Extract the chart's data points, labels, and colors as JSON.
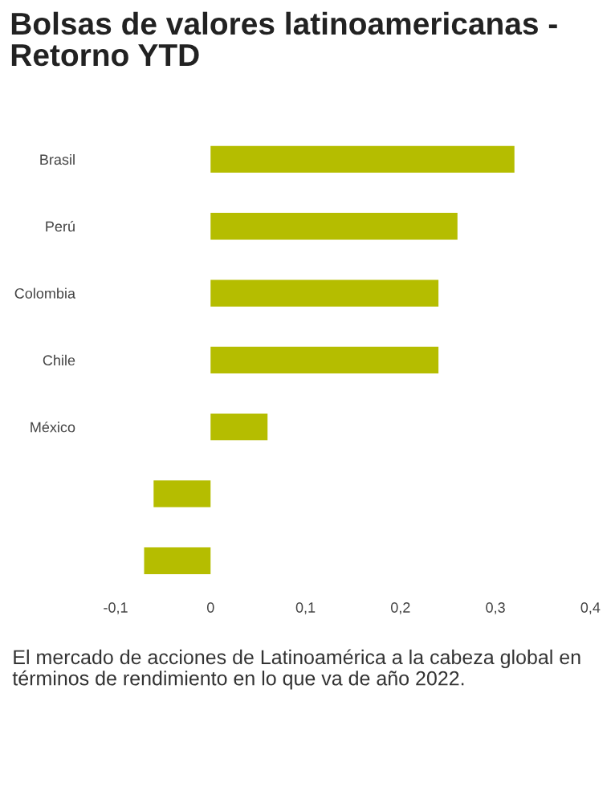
{
  "chart_data": {
    "type": "bar",
    "orientation": "horizontal",
    "title": "Bolsas de valores latinoamericanas - Retorno YTD",
    "categories": [
      "Brasil",
      "Perú",
      "Colombia",
      "Chile",
      "México",
      null,
      null
    ],
    "values": [
      0.32,
      0.26,
      0.24,
      0.24,
      0.06,
      -0.06,
      -0.07
    ],
    "color": "#b5bd00",
    "xlim": [
      -0.1,
      0.4
    ],
    "xticks": [
      {
        "value": -0.1,
        "label": "-0,1"
      },
      0,
      {
        "value": 0.1,
        "label": "0,1"
      },
      {
        "value": 0.2,
        "label": "0,2"
      },
      {
        "value": 0.3,
        "label": "0,3"
      },
      {
        "value": 0.4,
        "label": "0,4"
      }
    ],
    "grid": false,
    "legend": false,
    "annotations": [
      "El mercado de acciones de Latinoamérica a la cabeza global en términos de rendimiento en lo que va de año 2022."
    ]
  }
}
